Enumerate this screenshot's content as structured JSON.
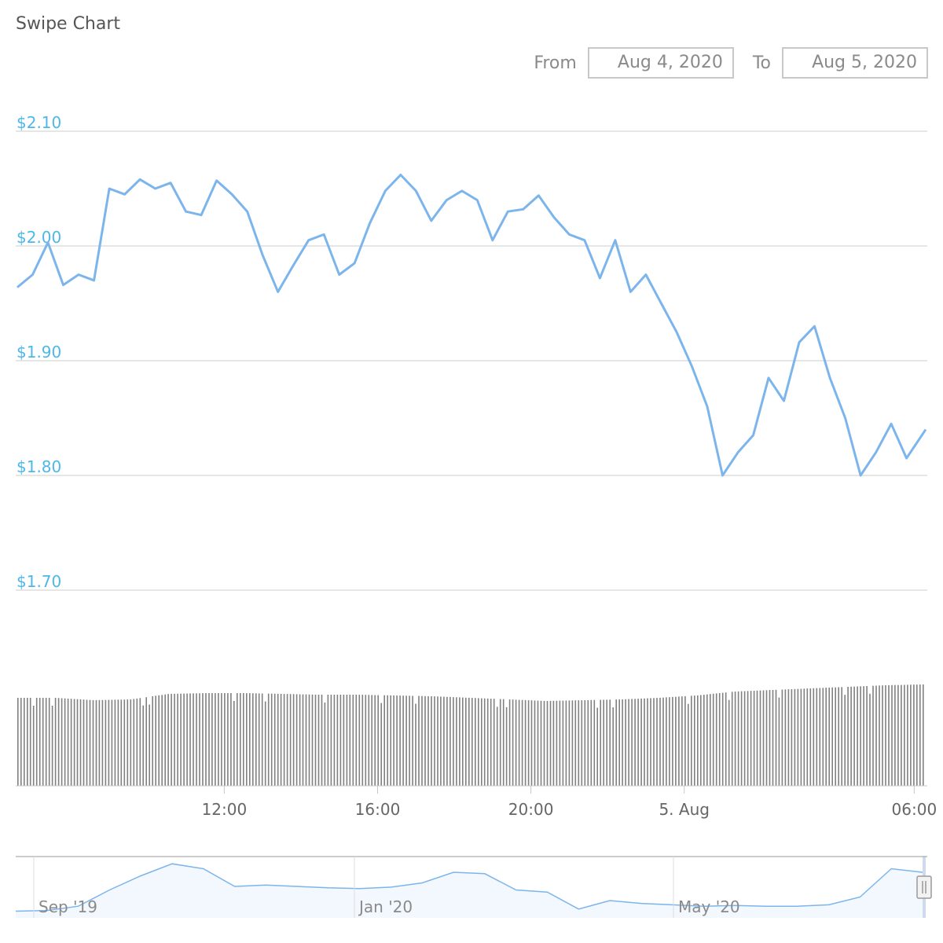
{
  "title": "Swipe Chart",
  "range": {
    "from_label": "From",
    "from_value": "Aug 4, 2020",
    "to_label": "To",
    "to_value": "Aug 5, 2020"
  },
  "colors": {
    "price_line": "#7cb5ec",
    "price_axis": "#4db8e8",
    "volume": "#808080",
    "grid": "#e6e6e6",
    "navigator_fill": "#f2f8fd"
  },
  "chart_data": [
    {
      "type": "line",
      "name": "price",
      "y_axis_labels": [
        "$2.10",
        "$2.00",
        "$1.90",
        "$1.80",
        "$1.70"
      ],
      "y_ticks": [
        2.1,
        2.0,
        1.9,
        1.8,
        1.7
      ],
      "ylim": [
        1.7,
        2.1
      ],
      "x_axis_labels": [
        "12:00",
        "16:00",
        "20:00",
        "5. Aug",
        "06:00"
      ],
      "x_ticks_hours": [
        12,
        16,
        20,
        24,
        30
      ],
      "xlim_hours": [
        6.6,
        30.3
      ],
      "x_hours": [
        6.6,
        7.0,
        7.4,
        7.8,
        8.2,
        8.6,
        9.0,
        9.4,
        9.8,
        10.2,
        10.6,
        11.0,
        11.4,
        11.8,
        12.2,
        12.6,
        13.0,
        13.4,
        13.8,
        14.2,
        14.6,
        15.0,
        15.4,
        15.8,
        16.2,
        16.6,
        17.0,
        17.4,
        17.8,
        18.2,
        18.6,
        19.0,
        19.4,
        19.8,
        20.2,
        20.6,
        21.0,
        21.4,
        21.8,
        22.2,
        22.6,
        23.0,
        23.4,
        23.8,
        24.2,
        24.6,
        25.0,
        25.4,
        25.8,
        26.2,
        26.6,
        27.0,
        27.4,
        27.8,
        28.2,
        28.6,
        29.0,
        29.4,
        29.8,
        30.3
      ],
      "values": [
        1.964,
        1.975,
        2.003,
        1.966,
        1.975,
        1.97,
        2.05,
        2.045,
        2.058,
        2.05,
        2.055,
        2.03,
        2.027,
        2.057,
        2.045,
        2.03,
        1.992,
        1.96,
        1.983,
        2.005,
        2.01,
        1.975,
        1.985,
        2.02,
        2.048,
        2.062,
        2.048,
        2.022,
        2.04,
        2.048,
        2.04,
        2.005,
        2.03,
        2.032,
        2.044,
        2.025,
        2.01,
        2.005,
        1.972,
        2.005,
        1.96,
        1.975,
        1.95,
        1.925,
        1.895,
        1.86,
        1.8,
        1.82,
        1.835,
        1.885,
        1.865,
        1.916,
        1.93,
        1.885,
        1.85,
        1.8,
        1.82,
        1.845,
        1.815,
        1.84
      ]
    },
    {
      "type": "bar",
      "name": "volume",
      "pattern": [
        1.0,
        1.0,
        0.97,
        0.98,
        1.05,
        1.06,
        1.06,
        1.05,
        1.04,
        1.04,
        1.03,
        1.02,
        1.0,
        0.98,
        0.96,
        0.97,
        0.98,
        1.0,
        1.03,
        1.08,
        1.1,
        1.12,
        1.14,
        1.16,
        1.17
      ]
    },
    {
      "type": "area",
      "name": "navigator",
      "x_axis_labels": [
        "Sep '19",
        "Jan '20",
        "May '20"
      ],
      "values": [
        0.05,
        0.06,
        0.12,
        0.35,
        0.55,
        0.72,
        0.65,
        0.4,
        0.42,
        0.4,
        0.38,
        0.37,
        0.39,
        0.45,
        0.6,
        0.58,
        0.35,
        0.32,
        0.08,
        0.2,
        0.16,
        0.14,
        0.12,
        0.13,
        0.12,
        0.12,
        0.14,
        0.25,
        0.65,
        0.6
      ]
    }
  ]
}
